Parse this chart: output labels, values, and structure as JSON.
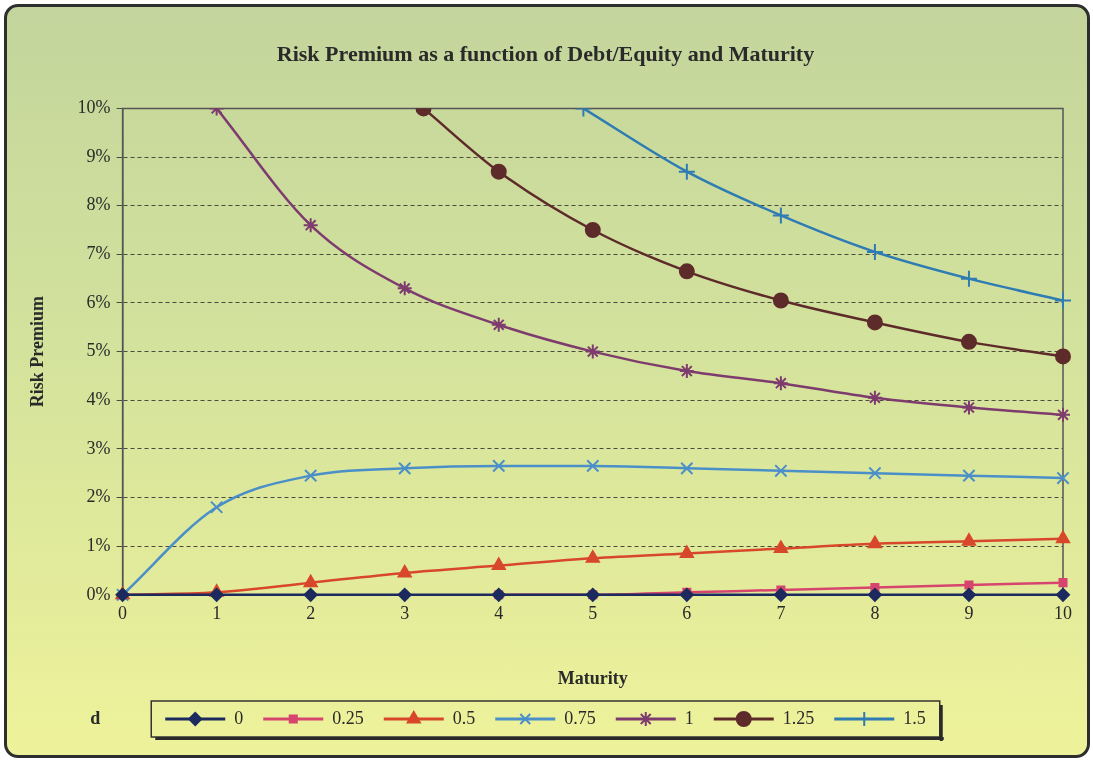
{
  "chart_data": {
    "type": "line",
    "title": "Risk Premium as a function of Debt/Equity and Maturity",
    "xlabel": "Maturity",
    "ylabel": "Risk Premium",
    "legend_title": "d",
    "legend": "bottom",
    "grid": "y",
    "x": [
      0,
      1,
      2,
      3,
      4,
      5,
      6,
      7,
      8,
      9,
      10
    ],
    "xlim": [
      0,
      10
    ],
    "xticks": [
      0,
      1,
      2,
      3,
      4,
      5,
      6,
      7,
      8,
      9,
      10
    ],
    "ylim": [
      0,
      10
    ],
    "yticks": [
      {
        "value": 0,
        "label": "0%"
      },
      {
        "value": 1,
        "label": "1%"
      },
      {
        "value": 2,
        "label": "2%"
      },
      {
        "value": 3,
        "label": "3%"
      },
      {
        "value": 4,
        "label": "4%"
      },
      {
        "value": 5,
        "label": "5%"
      },
      {
        "value": 6,
        "label": "6%"
      },
      {
        "value": 7,
        "label": "7%"
      },
      {
        "value": 8,
        "label": "8%"
      },
      {
        "value": 9,
        "label": "9%"
      },
      {
        "value": 10,
        "label": "10%"
      }
    ],
    "series": [
      {
        "name": "0",
        "color": "#1c2a5e",
        "marker": "diamond",
        "values": [
          0,
          0,
          0,
          0,
          0,
          0,
          0,
          0,
          0,
          0,
          0
        ]
      },
      {
        "name": "0.25",
        "color": "#d6456e",
        "marker": "square",
        "values": [
          null,
          null,
          null,
          null,
          0,
          0,
          0.05,
          0.1,
          0.15,
          0.2,
          0.25
        ]
      },
      {
        "name": "0.5",
        "color": "#d8472a",
        "marker": "triangle",
        "values": [
          0,
          0.05,
          0.25,
          0.45,
          0.6,
          0.75,
          0.85,
          0.95,
          1.05,
          1.1,
          1.15
        ]
      },
      {
        "name": "0.75",
        "color": "#4b8fc9",
        "marker": "x",
        "values": [
          0,
          1.8,
          2.45,
          2.6,
          2.65,
          2.65,
          2.6,
          2.55,
          2.5,
          2.45,
          2.4
        ]
      },
      {
        "name": "1",
        "color": "#7d3b6e",
        "marker": "cross",
        "values": [
          null,
          10,
          7.6,
          6.3,
          5.55,
          5,
          4.6,
          4.35,
          4.05,
          3.85,
          3.7
        ]
      },
      {
        "name": "1.25",
        "color": "#5e2b2b",
        "marker": "circle",
        "x": [
          3.2,
          4,
          5,
          6,
          7,
          8,
          9,
          10
        ],
        "values": [
          10,
          8.7,
          7.5,
          6.65,
          6.05,
          5.6,
          5.2,
          4.9
        ]
      },
      {
        "name": "1.5",
        "color": "#2f7bb3",
        "marker": "plus",
        "x": [
          4.9,
          6,
          7,
          8,
          9,
          10
        ],
        "values": [
          10,
          8.7,
          7.8,
          7.05,
          6.5,
          6.05
        ]
      }
    ]
  }
}
